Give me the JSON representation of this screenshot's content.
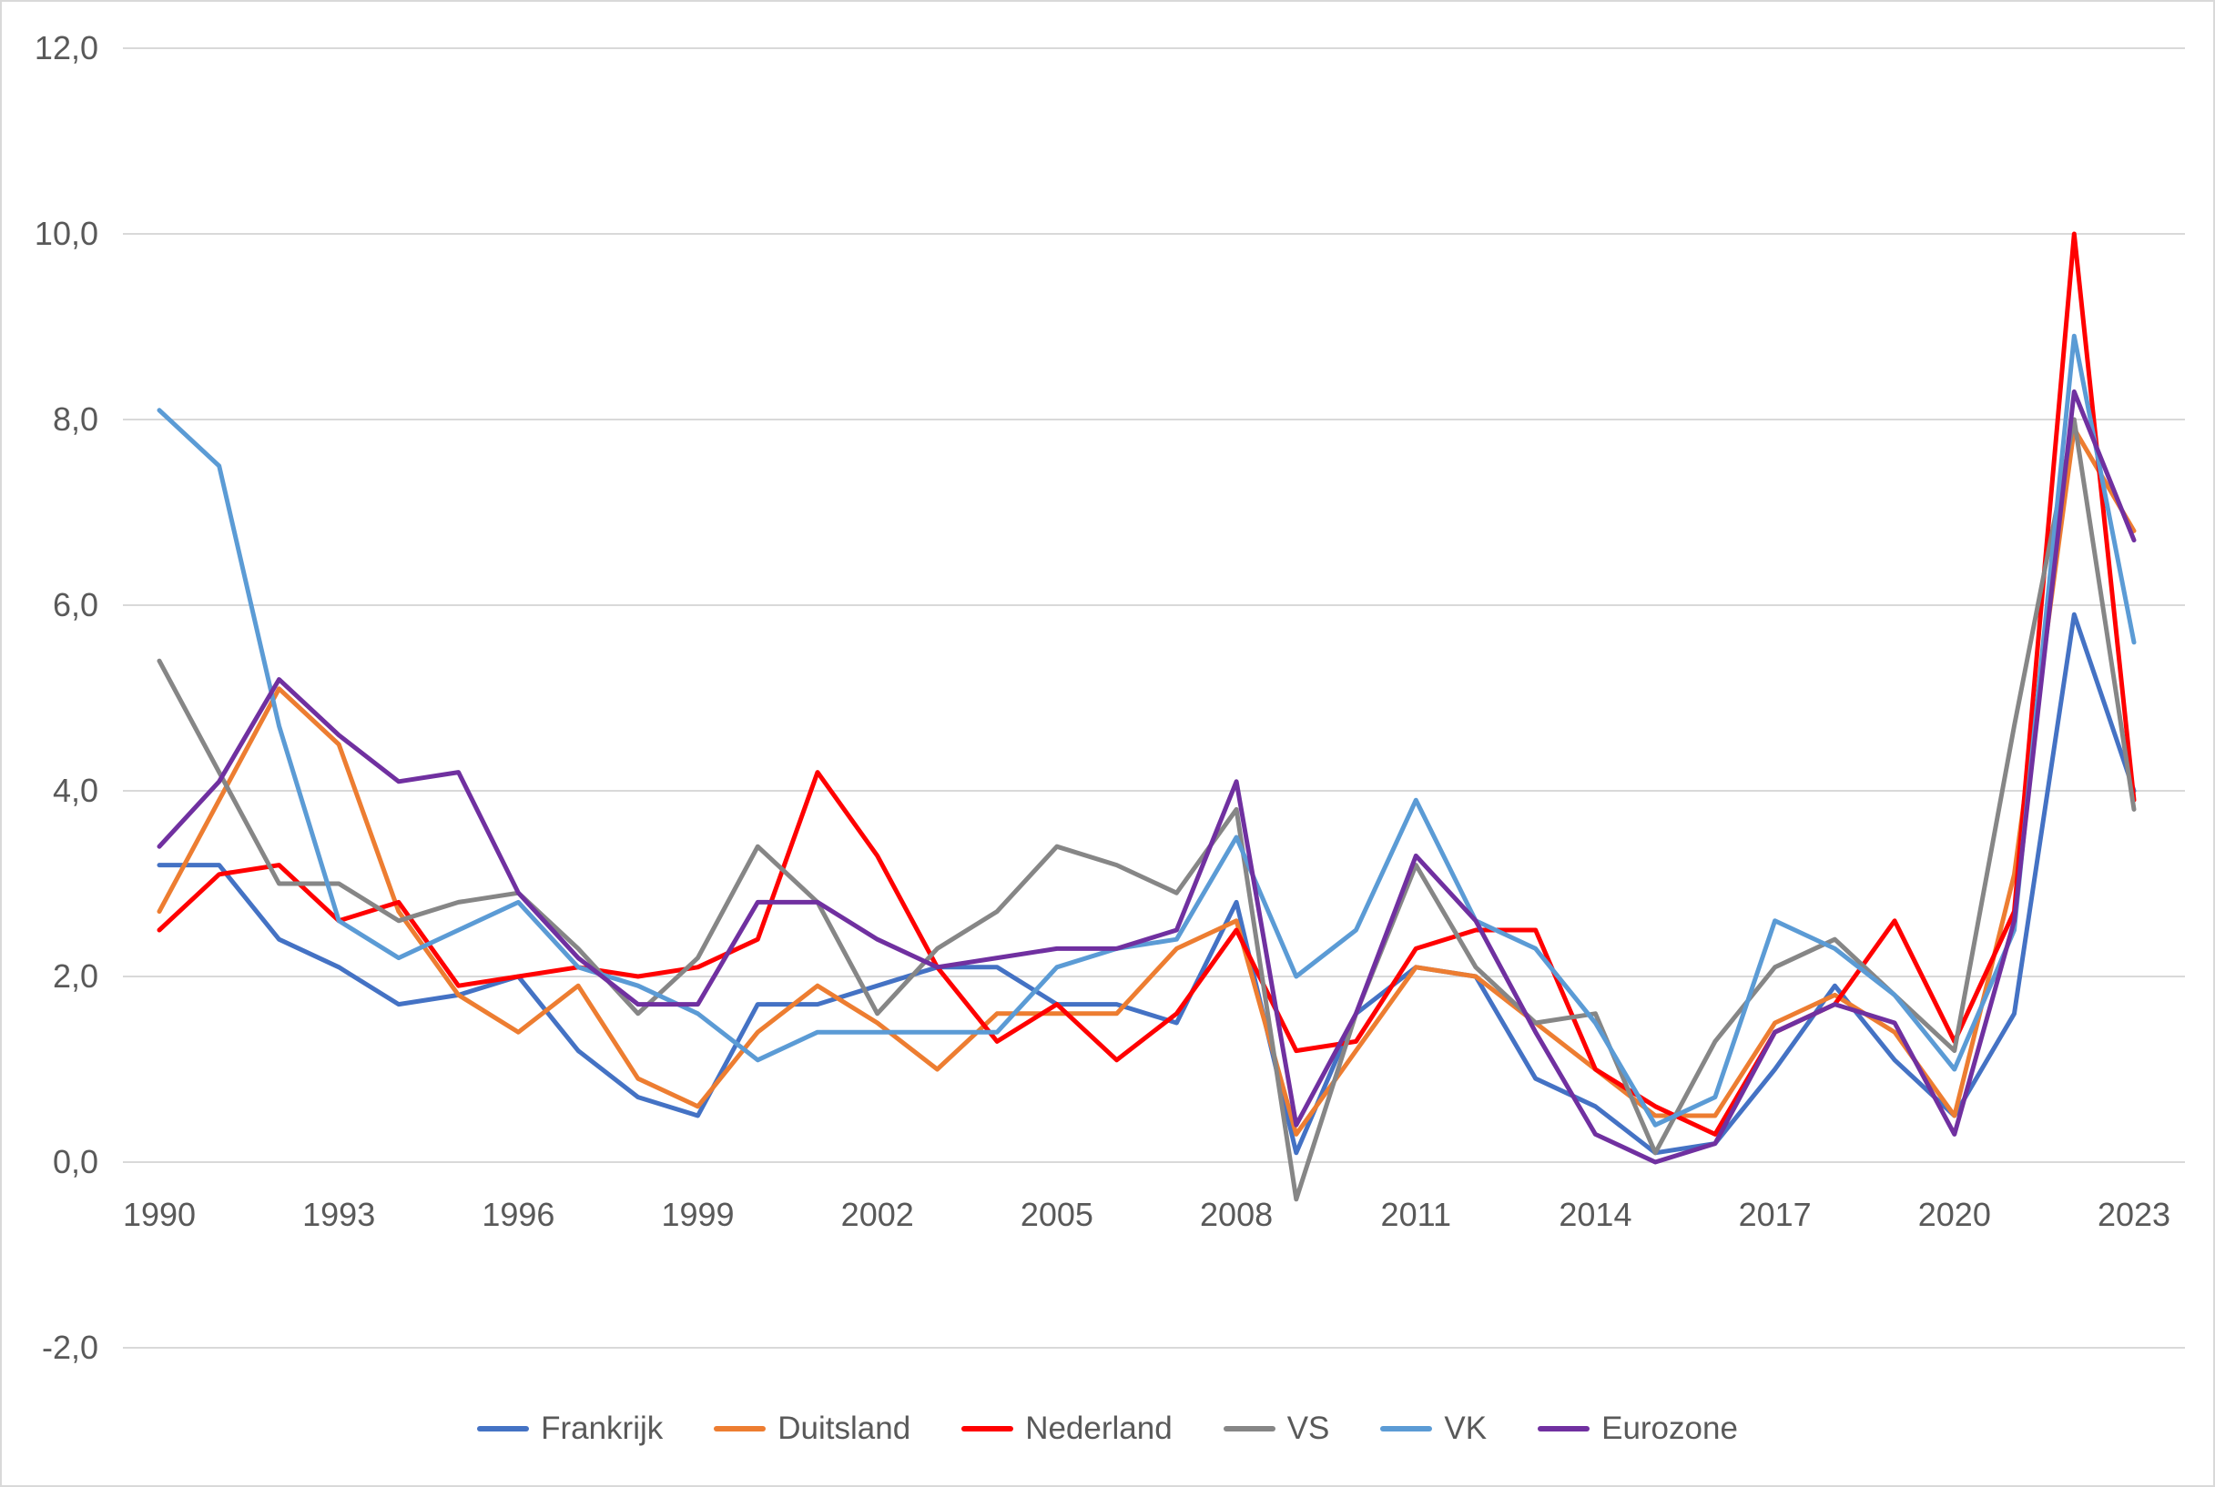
{
  "chart_data": {
    "type": "line",
    "title": "",
    "xlabel": "",
    "ylabel": "",
    "ylim": [
      -2.0,
      12.0
    ],
    "grid": "horizontal",
    "legend_position": "bottom",
    "decimal_separator": ",",
    "x": [
      1990,
      1991,
      1992,
      1993,
      1994,
      1995,
      1996,
      1997,
      1998,
      1999,
      2000,
      2001,
      2002,
      2003,
      2004,
      2005,
      2006,
      2007,
      2008,
      2009,
      2010,
      2011,
      2012,
      2013,
      2014,
      2015,
      2016,
      2017,
      2018,
      2019,
      2020,
      2021,
      2022,
      2023
    ],
    "x_tick_labels": [
      "1990",
      "1993",
      "1996",
      "1999",
      "2002",
      "2005",
      "2008",
      "2011",
      "2014",
      "2017",
      "2020",
      "2023"
    ],
    "y_ticks": [
      {
        "value": 12,
        "label": "12,0"
      },
      {
        "value": 10,
        "label": "10,0"
      },
      {
        "value": 8,
        "label": "8,0"
      },
      {
        "value": 6,
        "label": "6,0"
      },
      {
        "value": 4,
        "label": "4,0"
      },
      {
        "value": 2,
        "label": "2,0"
      },
      {
        "value": 0,
        "label": "0,0"
      },
      {
        "value": -2,
        "label": "-2,0"
      }
    ],
    "series": [
      {
        "name": "Frankrijk",
        "color": "#4472C4",
        "values": [
          3.2,
          3.2,
          2.4,
          2.1,
          1.7,
          1.8,
          2.0,
          1.2,
          0.7,
          0.5,
          1.7,
          1.7,
          1.9,
          2.1,
          2.1,
          1.7,
          1.7,
          1.5,
          2.8,
          0.1,
          1.6,
          2.1,
          2.0,
          0.9,
          0.6,
          0.1,
          0.2,
          1.0,
          1.9,
          1.1,
          0.5,
          1.6,
          5.9,
          4.0
        ]
      },
      {
        "name": "Duitsland",
        "color": "#ED7D31",
        "values": [
          2.7,
          3.9,
          5.1,
          4.5,
          2.7,
          1.8,
          1.4,
          1.9,
          0.9,
          0.6,
          1.4,
          1.9,
          1.5,
          1.0,
          1.6,
          1.6,
          1.6,
          2.3,
          2.6,
          0.3,
          1.2,
          2.1,
          2.0,
          1.5,
          1.0,
          0.5,
          0.5,
          1.5,
          1.8,
          1.4,
          0.5,
          3.1,
          7.9,
          6.8
        ]
      },
      {
        "name": "Nederland",
        "color": "#FF0000",
        "values": [
          2.5,
          3.1,
          3.2,
          2.6,
          2.8,
          1.9,
          2.0,
          2.1,
          2.0,
          2.1,
          2.4,
          4.2,
          3.3,
          2.1,
          1.3,
          1.7,
          1.1,
          1.6,
          2.5,
          1.2,
          1.3,
          2.3,
          2.5,
          2.5,
          1.0,
          0.6,
          0.3,
          1.4,
          1.7,
          2.6,
          1.3,
          2.7,
          10.0,
          3.9
        ]
      },
      {
        "name": "VS",
        "color": "#868686",
        "values": [
          5.4,
          4.2,
          3.0,
          3.0,
          2.6,
          2.8,
          2.9,
          2.3,
          1.6,
          2.2,
          3.4,
          2.8,
          1.6,
          2.3,
          2.7,
          3.4,
          3.2,
          2.9,
          3.8,
          -0.4,
          1.6,
          3.2,
          2.1,
          1.5,
          1.6,
          0.1,
          1.3,
          2.1,
          2.4,
          1.8,
          1.2,
          4.7,
          8.0,
          3.8
        ]
      },
      {
        "name": "VK",
        "color": "#5B9BD5",
        "values": [
          8.1,
          7.5,
          4.7,
          2.6,
          2.2,
          2.5,
          2.8,
          2.1,
          1.9,
          1.6,
          1.1,
          1.4,
          1.4,
          1.4,
          1.4,
          2.1,
          2.3,
          2.4,
          3.5,
          2.0,
          2.5,
          3.9,
          2.6,
          2.3,
          1.5,
          0.4,
          0.7,
          2.6,
          2.3,
          1.8,
          1.0,
          2.5,
          8.9,
          5.6
        ]
      },
      {
        "name": "Eurozone",
        "color": "#7030A0",
        "values": [
          3.4,
          4.1,
          5.2,
          4.6,
          4.1,
          4.2,
          2.9,
          2.2,
          1.7,
          1.7,
          2.8,
          2.8,
          2.4,
          2.1,
          2.2,
          2.3,
          2.3,
          2.5,
          4.1,
          0.4,
          1.6,
          3.3,
          2.6,
          1.4,
          0.3,
          0.0,
          0.2,
          1.4,
          1.7,
          1.5,
          0.3,
          2.6,
          8.3,
          6.7
        ]
      }
    ]
  }
}
